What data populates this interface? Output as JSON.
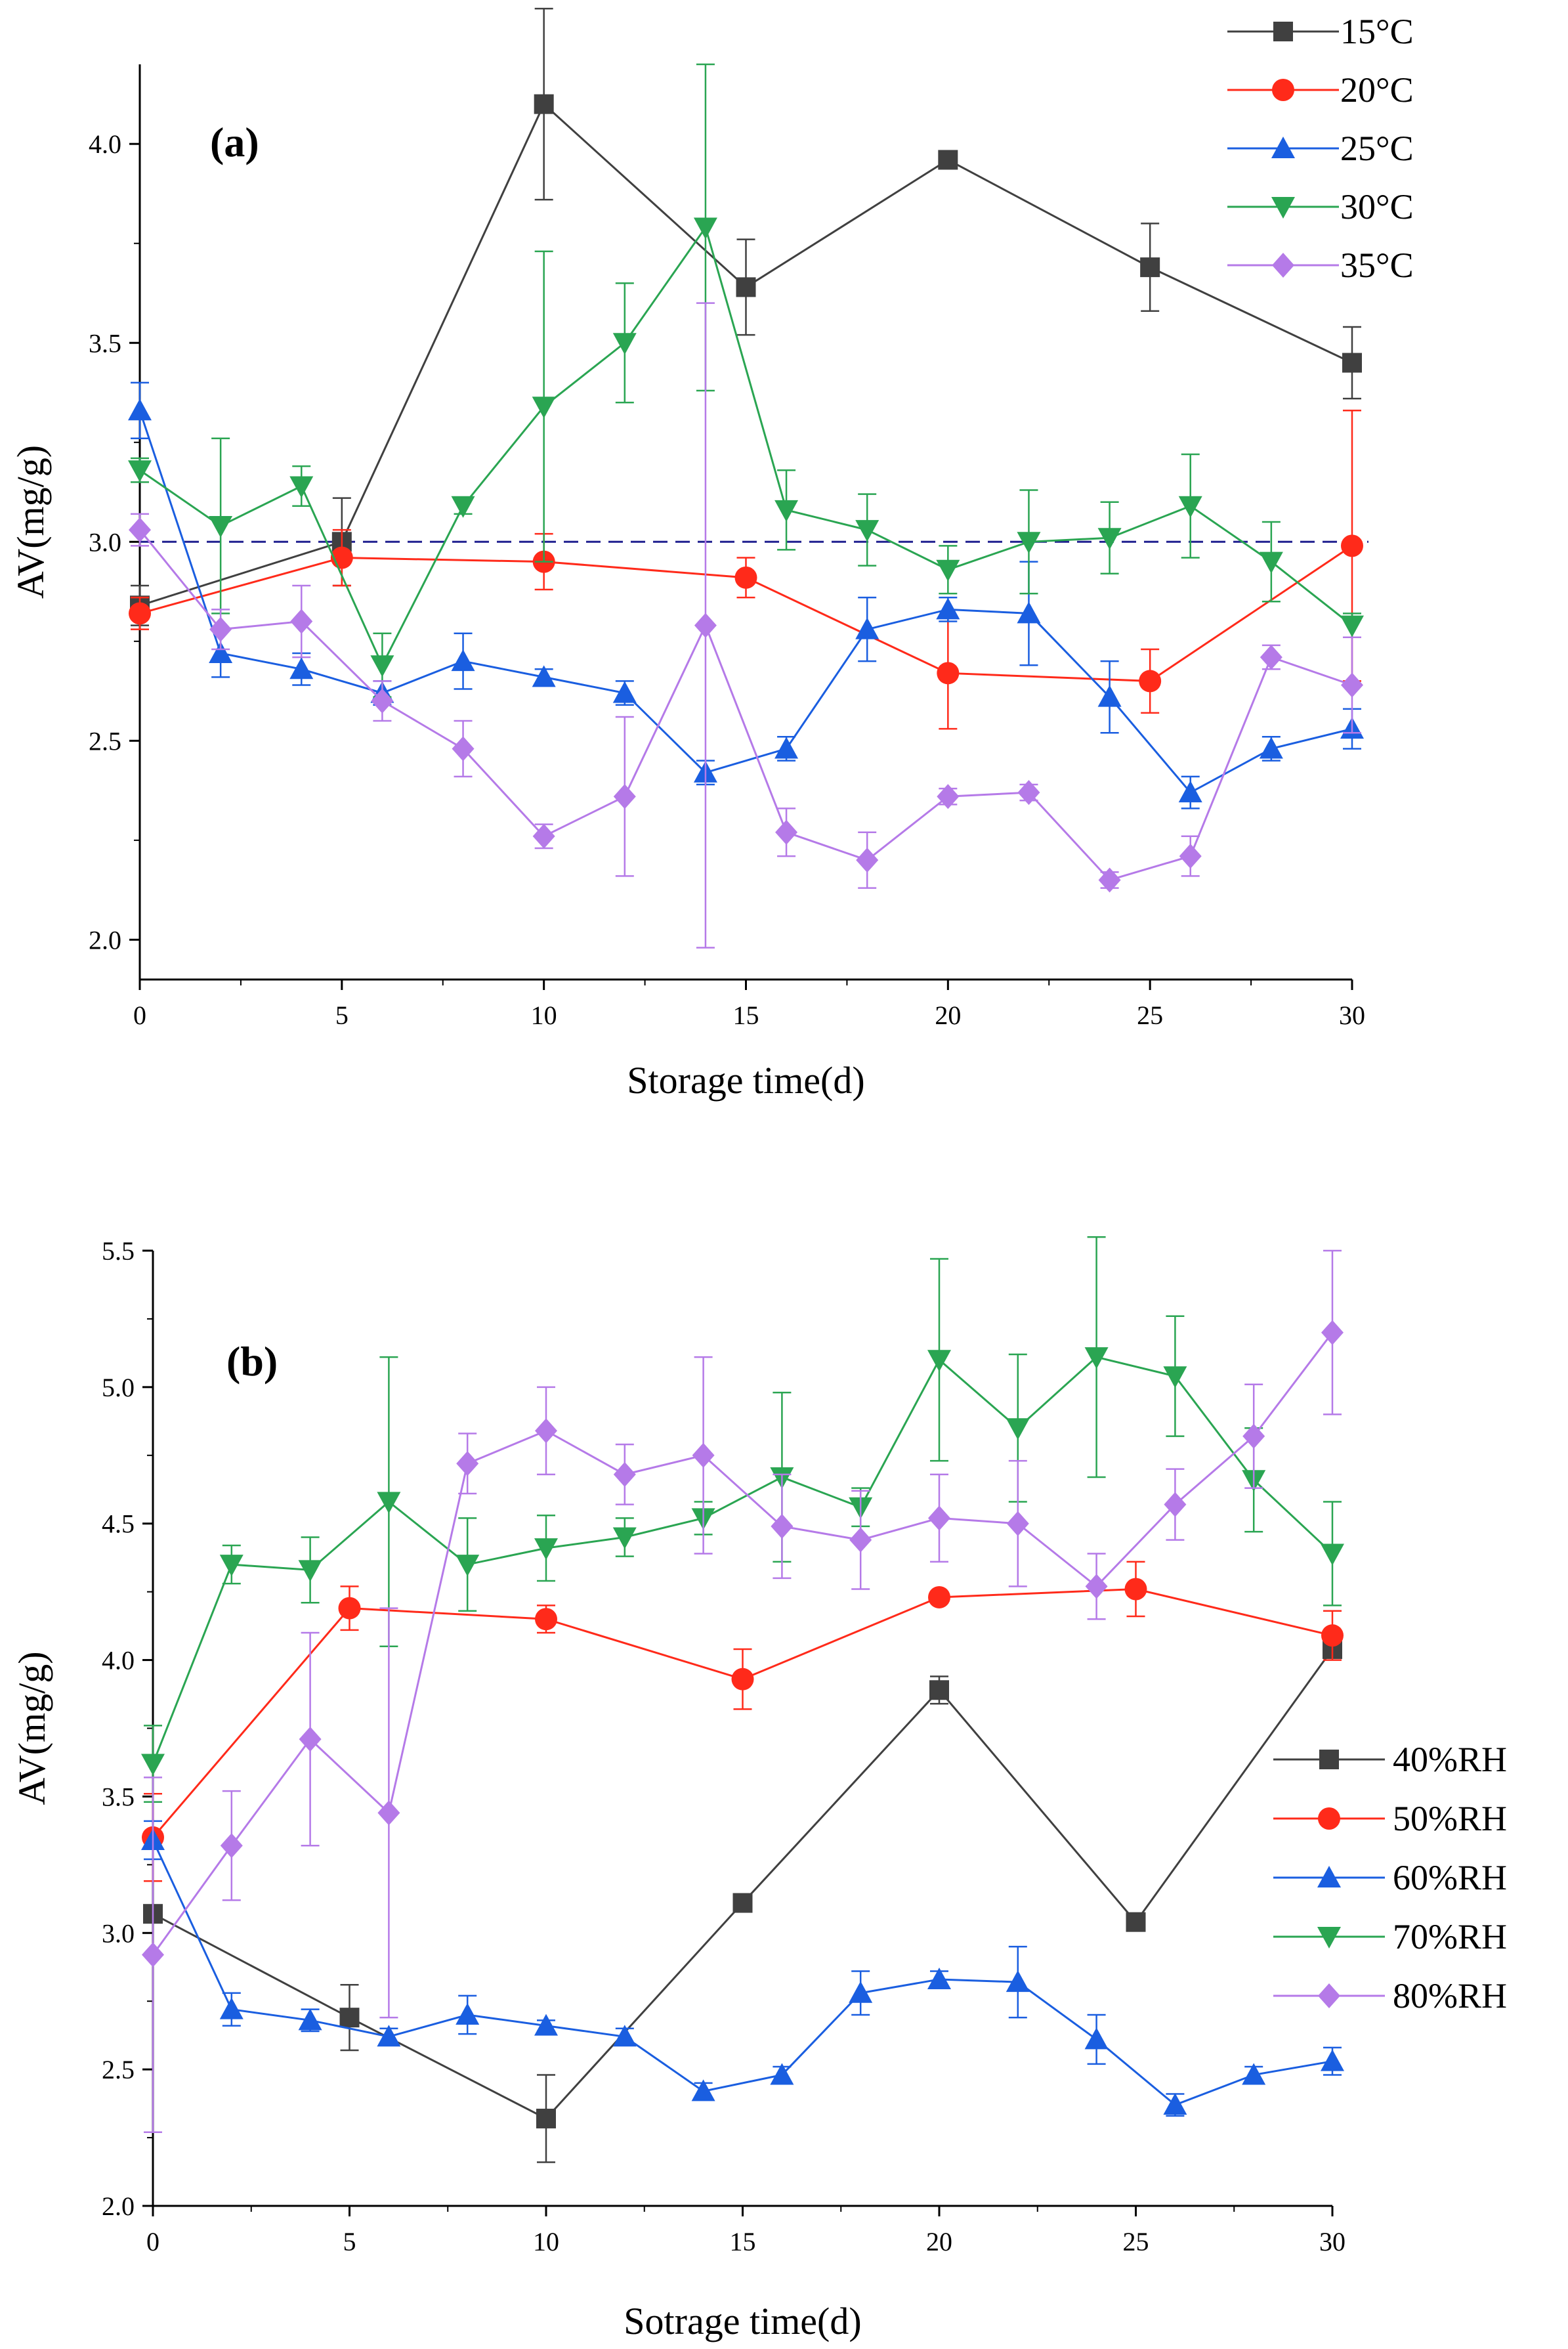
{
  "chart_data": [
    {
      "type": "line",
      "panel_label": "(a)",
      "xlabel": "Storage time(d)",
      "ylabel": "AV(mg/g)",
      "xlim": [
        0,
        30
      ],
      "ylim": [
        1.9,
        4.2
      ],
      "xticks": [
        0,
        5,
        10,
        15,
        20,
        25,
        30
      ],
      "yticks": [
        2.0,
        2.5,
        3.0,
        3.5,
        4.0
      ],
      "ytick_labels": [
        "2.0",
        "2.5",
        "3.0",
        "3.5",
        "4.0"
      ],
      "reference_line": {
        "y": 3.0,
        "style": "dashed",
        "color": "#1f1f8f"
      },
      "legend_position": "top-right",
      "series": [
        {
          "name": "15°C",
          "color": "#404040",
          "marker": "square",
          "x": [
            0,
            5,
            10,
            15,
            20,
            25,
            30
          ],
          "y": [
            2.84,
            3.0,
            4.1,
            3.64,
            3.96,
            3.69,
            3.45
          ],
          "err": [
            0.05,
            0.11,
            0.24,
            0.12,
            0.02,
            0.11,
            0.09
          ]
        },
        {
          "name": "20°C",
          "color": "#ff2a1a",
          "marker": "circle",
          "x": [
            0,
            5,
            10,
            15,
            20,
            25,
            30
          ],
          "y": [
            2.82,
            2.96,
            2.95,
            2.91,
            2.67,
            2.65,
            2.99
          ],
          "err": [
            0.04,
            0.07,
            0.07,
            0.05,
            0.14,
            0.08,
            0.34
          ]
        },
        {
          "name": "25°C",
          "color": "#1a5ee0",
          "marker": "triangle-up",
          "x": [
            0,
            2,
            4,
            6,
            8,
            10,
            12,
            14,
            16,
            18,
            20,
            22,
            24,
            26,
            28,
            30
          ],
          "y": [
            3.33,
            2.72,
            2.68,
            2.62,
            2.7,
            2.66,
            2.62,
            2.42,
            2.48,
            2.78,
            2.83,
            2.82,
            2.61,
            2.37,
            2.48,
            2.53
          ],
          "err": [
            0.07,
            0.06,
            0.04,
            0.03,
            0.07,
            0.02,
            0.03,
            0.03,
            0.03,
            0.08,
            0.03,
            0.13,
            0.09,
            0.04,
            0.03,
            0.05
          ]
        },
        {
          "name": "30°C",
          "color": "#2aa552",
          "marker": "triangle-down",
          "x": [
            0,
            2,
            4,
            6,
            8,
            10,
            12,
            14,
            16,
            18,
            20,
            22,
            24,
            26,
            28,
            30
          ],
          "y": [
            3.18,
            3.04,
            3.14,
            2.69,
            3.09,
            3.34,
            3.5,
            3.79,
            3.08,
            3.03,
            2.93,
            3.0,
            3.01,
            3.09,
            2.95,
            2.79
          ],
          "err": [
            0.03,
            0.22,
            0.05,
            0.08,
            0.02,
            0.39,
            0.15,
            0.41,
            0.1,
            0.09,
            0.06,
            0.13,
            0.09,
            0.13,
            0.1,
            0.03
          ]
        },
        {
          "name": "35°C",
          "color": "#b57ae8",
          "marker": "diamond",
          "x": [
            0,
            2,
            4,
            6,
            8,
            10,
            12,
            14,
            16,
            18,
            20,
            22,
            24,
            26,
            28,
            30
          ],
          "y": [
            3.03,
            2.78,
            2.8,
            2.6,
            2.48,
            2.26,
            2.36,
            2.79,
            2.27,
            2.2,
            2.36,
            2.37,
            2.15,
            2.21,
            2.71,
            2.64
          ],
          "err": [
            0.04,
            0.05,
            0.09,
            0.05,
            0.07,
            0.03,
            0.2,
            0.81,
            0.06,
            0.07,
            0.02,
            0.02,
            0.02,
            0.05,
            0.03,
            0.12
          ]
        }
      ]
    },
    {
      "type": "line",
      "panel_label": "(b)",
      "xlabel": "Sotrage time(d)",
      "ylabel": "AV(mg/g)",
      "xlim": [
        0,
        30
      ],
      "ylim": [
        2.0,
        5.5
      ],
      "xticks": [
        0,
        5,
        10,
        15,
        20,
        25,
        30
      ],
      "yticks": [
        2.0,
        2.5,
        3.0,
        3.5,
        4.0,
        4.5,
        5.0,
        5.5
      ],
      "ytick_labels": [
        "2.0",
        "2.5",
        "3.0",
        "3.5",
        "4.0",
        "4.5",
        "5.0",
        "5.5"
      ],
      "legend_position": "right",
      "series": [
        {
          "name": "40%RH",
          "color": "#404040",
          "marker": "square",
          "x": [
            0,
            5,
            10,
            15,
            20,
            25,
            30
          ],
          "y": [
            3.07,
            2.69,
            2.32,
            3.11,
            3.89,
            3.04,
            4.04
          ],
          "err": [
            0.03,
            0.12,
            0.16,
            0.02,
            0.05,
            0.02,
            0.03
          ]
        },
        {
          "name": "50%RH",
          "color": "#ff2a1a",
          "marker": "circle",
          "x": [
            0,
            5,
            10,
            15,
            20,
            25,
            30
          ],
          "y": [
            3.35,
            4.19,
            4.15,
            3.93,
            4.23,
            4.26,
            4.09
          ],
          "err": [
            0.16,
            0.08,
            0.05,
            0.11,
            0.02,
            0.1,
            0.09
          ]
        },
        {
          "name": "60%RH",
          "color": "#1a5ee0",
          "marker": "triangle-up",
          "x": [
            0,
            2,
            4,
            6,
            8,
            10,
            12,
            14,
            16,
            18,
            20,
            22,
            24,
            26,
            28,
            30
          ],
          "y": [
            3.34,
            2.72,
            2.68,
            2.62,
            2.7,
            2.66,
            2.62,
            2.42,
            2.48,
            2.78,
            2.83,
            2.82,
            2.61,
            2.37,
            2.48,
            2.53
          ],
          "err": [
            0.07,
            0.06,
            0.04,
            0.03,
            0.07,
            0.02,
            0.03,
            0.03,
            0.03,
            0.08,
            0.03,
            0.13,
            0.09,
            0.04,
            0.03,
            0.05
          ]
        },
        {
          "name": "70%RH",
          "color": "#2aa552",
          "marker": "triangle-down",
          "x": [
            0,
            2,
            4,
            6,
            8,
            10,
            12,
            14,
            16,
            18,
            20,
            22,
            24,
            26,
            28,
            30
          ],
          "y": [
            3.62,
            4.35,
            4.33,
            4.58,
            4.35,
            4.41,
            4.45,
            4.52,
            4.67,
            4.56,
            5.1,
            4.85,
            5.11,
            5.04,
            4.66,
            4.39
          ],
          "err": [
            0.14,
            0.07,
            0.12,
            0.53,
            0.17,
            0.12,
            0.07,
            0.06,
            0.31,
            0.07,
            0.37,
            0.27,
            0.44,
            0.22,
            0.19,
            0.19
          ]
        },
        {
          "name": "80%RH",
          "color": "#b57ae8",
          "marker": "diamond",
          "x": [
            0,
            2,
            4,
            6,
            8,
            10,
            12,
            14,
            16,
            18,
            20,
            22,
            24,
            26,
            28,
            30
          ],
          "y": [
            2.92,
            3.32,
            3.71,
            3.44,
            4.72,
            4.84,
            4.68,
            4.75,
            4.49,
            4.44,
            4.52,
            4.5,
            4.27,
            4.57,
            4.82,
            5.2
          ],
          "err": [
            0.65,
            0.2,
            0.39,
            0.75,
            0.11,
            0.16,
            0.11,
            0.36,
            0.19,
            0.18,
            0.16,
            0.23,
            0.12,
            0.13,
            0.19,
            0.3
          ]
        }
      ]
    }
  ]
}
